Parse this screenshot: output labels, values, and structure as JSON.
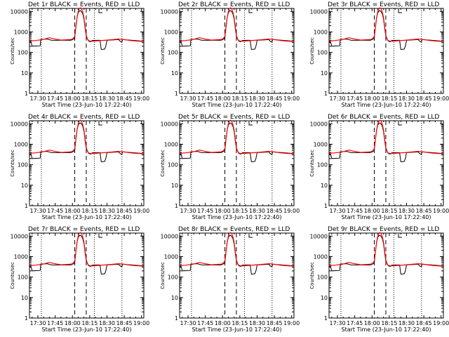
{
  "chart_data": [
    {
      "type": "line",
      "title": "Det 1r BLACK = Events, RED = LLD",
      "ylabel": "Counts/sec",
      "xlabel": "Start Time (23-Jun-10 17:22:40)"
    },
    {
      "type": "line",
      "title": "Det 2r BLACK = Events, RED = LLD",
      "ylabel": "Counts/sec",
      "xlabel": "Start Time (23-Jun-10 17:22:40)"
    },
    {
      "type": "line",
      "title": "Det 3r BLACK = Events, RED = LLD",
      "ylabel": "Counts/sec",
      "xlabel": "Start Time (23-Jun-10 17:22:40)"
    },
    {
      "type": "line",
      "title": "Det 4r BLACK = Events, RED = LLD",
      "ylabel": "Counts/sec",
      "xlabel": "Start Time (23-Jun-10 17:22:40)"
    },
    {
      "type": "line",
      "title": "Det 5r BLACK = Events, RED = LLD",
      "ylabel": "Counts/sec",
      "xlabel": "Start Time (23-Jun-10 17:22:40)"
    },
    {
      "type": "line",
      "title": "Det 6r BLACK = Events, RED = LLD",
      "ylabel": "Counts/sec",
      "xlabel": "Start Time (23-Jun-10 17:22:40)"
    },
    {
      "type": "line",
      "title": "Det 7r BLACK = Events, RED = LLD",
      "ylabel": "Counts/sec",
      "xlabel": "Start Time (23-Jun-10 17:22:40)"
    },
    {
      "type": "line",
      "title": "Det 8r BLACK = Events, RED = LLD",
      "ylabel": "Counts/sec",
      "xlabel": "Start Time (23-Jun-10 17:22:40)"
    },
    {
      "type": "line",
      "title": "Det 9r BLACK = Events, RED = LLD",
      "ylabel": "Counts/sec",
      "xlabel": "Start Time (23-Jun-10 17:22:40)"
    }
  ],
  "shared_axes": {
    "x_tick_labels": [
      "17:30",
      "17:45",
      "18:00",
      "18:15",
      "18:30",
      "18:45",
      "19:00"
    ],
    "x_tick_minutes": [
      30,
      45,
      60,
      75,
      90,
      105,
      120
    ],
    "x_range_minutes": [
      22.67,
      122
    ],
    "y_scale": "log",
    "y_range": [
      1,
      14000
    ],
    "y_tick_labels": [
      "1",
      "10",
      "100",
      "1000",
      "10000"
    ],
    "y_tick_values": [
      1,
      10,
      100,
      1000,
      10000
    ],
    "dotted_vlines_minutes": [
      33,
      79,
      103
    ],
    "dashed_vlines_minutes": [
      62,
      72
    ],
    "bracket_label": "L"
  },
  "series_definitions": {
    "events": {
      "name": "Events",
      "color": "#000000",
      "x": [
        22.7,
        24,
        25,
        32,
        32.5,
        38,
        42,
        50,
        58,
        59,
        60,
        61,
        62,
        63,
        64,
        65,
        66,
        67,
        68,
        69,
        70,
        71,
        72,
        73,
        74,
        75,
        76,
        77,
        79,
        80,
        84,
        85,
        86,
        88,
        89,
        90,
        100,
        102,
        103,
        103.5,
        110,
        115,
        122
      ],
      "y": [
        330,
        330,
        200,
        210,
        430,
        450,
        390,
        390,
        390,
        400,
        420,
        450,
        500,
        1800,
        5000,
        8500,
        10500,
        11000,
        9500,
        7500,
        4200,
        1500,
        600,
        480,
        360,
        340,
        330,
        380,
        390,
        390,
        390,
        140,
        140,
        145,
        200,
        390,
        420,
        330,
        330,
        420,
        400,
        380,
        350
      ]
    },
    "lld": {
      "name": "LLD",
      "color": "#ff0000",
      "x": [
        22.7,
        28,
        34,
        40,
        44,
        50,
        58,
        60,
        62,
        63,
        64,
        65,
        66,
        67,
        68,
        69,
        70,
        71,
        72,
        73,
        74,
        76,
        80,
        90,
        100,
        105,
        110,
        115,
        122
      ],
      "y": [
        360,
        380,
        420,
        520,
        460,
        400,
        420,
        450,
        600,
        1800,
        5000,
        10000,
        14000,
        15000,
        13000,
        9000,
        5000,
        1800,
        700,
        450,
        380,
        350,
        360,
        400,
        450,
        420,
        380,
        360,
        340
      ]
    }
  }
}
